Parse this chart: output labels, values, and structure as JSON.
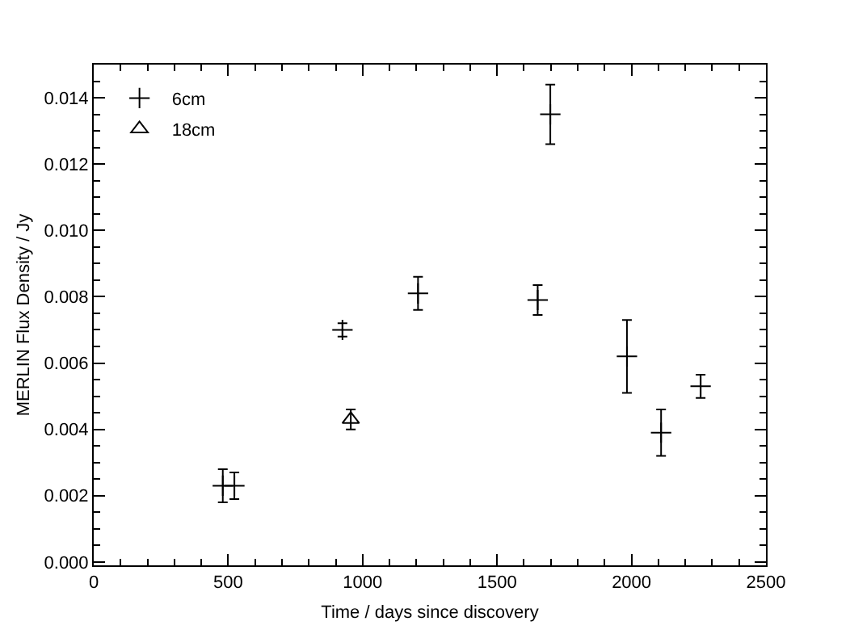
{
  "chart_data": {
    "type": "scatter",
    "xlabel": "Time / days since discovery",
    "ylabel": "MERLIN Flux Density / Jy",
    "xlim": [
      0,
      2500
    ],
    "xticks": [
      0,
      500,
      1000,
      1500,
      2000,
      2500
    ],
    "ylim": [
      -0.0001,
      0.015
    ],
    "yticks": [
      {
        "value": 0,
        "label": "0.000"
      },
      {
        "value": 0.002,
        "label": "0.002"
      },
      {
        "value": 0.004,
        "label": "0.004"
      },
      {
        "value": 0.006,
        "label": "0.006"
      },
      {
        "value": 0.008,
        "label": "0.008"
      },
      {
        "value": 0.01,
        "label": "0.010"
      },
      {
        "value": 0.012,
        "label": "0.012"
      },
      {
        "value": 0.014,
        "label": "0.014"
      }
    ],
    "legend": "top left",
    "series": [
      {
        "name": "6cm",
        "color": "#000000",
        "marker": "cross",
        "x": [
          480,
          523,
          925,
          1206,
          1651,
          1698,
          1983,
          2110,
          2257
        ],
        "values": [
          0.0023,
          0.0023,
          0.007,
          0.0081,
          0.0079,
          0.0135,
          0.0062,
          0.0039,
          0.0053
        ],
        "errors": [
          0.0005,
          0.0004,
          0.0002,
          0.0005,
          0.00045,
          0.0009,
          0.0011,
          0.0007,
          0.00035
        ]
      },
      {
        "name": "18cm",
        "color": "#000000",
        "marker": "triangle",
        "x": [
          956
        ],
        "values": [
          0.0043
        ],
        "errors": [
          0.0003
        ]
      }
    ]
  }
}
